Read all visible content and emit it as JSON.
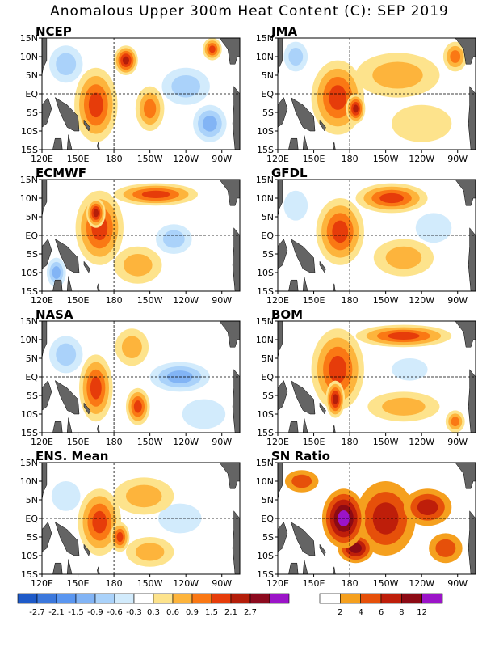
{
  "title": "Anomalous Upper 300m Heat Content (C): SEP 2019",
  "lat_ticks": [
    "15N",
    "10N",
    "5N",
    "EQ",
    "5S",
    "10S",
    "15S"
  ],
  "lon_ticks": [
    "120E",
    "150E",
    "180",
    "150W",
    "120W",
    "90W"
  ],
  "panels": [
    {
      "name": "NCEP"
    },
    {
      "name": "JMA"
    },
    {
      "name": "ECMWF"
    },
    {
      "name": "GFDL"
    },
    {
      "name": "NASA"
    },
    {
      "name": "BOM"
    },
    {
      "name": "ENS. Mean"
    },
    {
      "name": "SN Ratio"
    }
  ],
  "colorbars": {
    "anomaly": {
      "labels": [
        "-2.7",
        "-2.1",
        "-1.5",
        "-0.9",
        "-0.6",
        "-0.3",
        "0.3",
        "0.6",
        "0.9",
        "1.5",
        "2.1",
        "2.7"
      ],
      "colors": [
        "#1e5ac8",
        "#3c78dc",
        "#5a96f0",
        "#82b4f5",
        "#aad2fa",
        "#d2ebfc",
        "#ffffff",
        "#fde38c",
        "#fdb43c",
        "#fa7814",
        "#e63c0a",
        "#b41e0a",
        "#8c0a1e",
        "#9b14c8"
      ]
    },
    "sn_ratio": {
      "labels": [
        "2",
        "4",
        "6",
        "8",
        "12"
      ],
      "colors": [
        "#ffffff",
        "#f5a01e",
        "#e6500a",
        "#be1e0a",
        "#8c0a14",
        "#9b14c8"
      ]
    }
  },
  "chart_data": {
    "type": "heatmap",
    "variable": "Anomalous Upper 300m Heat Content (C)",
    "period": "SEP 2019",
    "lat_range": [
      "15S",
      "15N"
    ],
    "lon_range": [
      "120E",
      "75W"
    ],
    "panels": [
      {
        "name": "NCEP",
        "features": [
          {
            "lon": 165,
            "lat": -3,
            "value": 1.5,
            "r_lon": 18,
            "r_lat": 10
          },
          {
            "lon": 190,
            "lat": 9,
            "value": 2.1,
            "r_lon": 10,
            "r_lat": 4
          },
          {
            "lon": 210,
            "lat": -4,
            "value": 0.9,
            "r_lon": 12,
            "r_lat": 6
          },
          {
            "lon": 240,
            "lat": 2,
            "value": -0.6,
            "r_lon": 20,
            "r_lat": 5
          },
          {
            "lon": 260,
            "lat": -8,
            "value": -0.9,
            "r_lon": 14,
            "r_lat": 5
          },
          {
            "lon": 140,
            "lat": 8,
            "value": -0.6,
            "r_lon": 14,
            "r_lat": 5
          },
          {
            "lon": 262,
            "lat": 12,
            "value": 1.5,
            "r_lon": 8,
            "r_lat": 3
          }
        ]
      },
      {
        "name": "JMA",
        "features": [
          {
            "lon": 170,
            "lat": -1,
            "value": 1.5,
            "r_lon": 22,
            "r_lat": 10
          },
          {
            "lon": 185,
            "lat": -4,
            "value": 2.1,
            "r_lon": 8,
            "r_lat": 4
          },
          {
            "lon": 220,
            "lat": 5,
            "value": 0.6,
            "r_lon": 35,
            "r_lat": 6
          },
          {
            "lon": 240,
            "lat": -8,
            "value": 0.3,
            "r_lon": 25,
            "r_lat": 5
          },
          {
            "lon": 135,
            "lat": 10,
            "value": -0.6,
            "r_lon": 10,
            "r_lat": 4
          },
          {
            "lon": 268,
            "lat": 10,
            "value": 0.9,
            "r_lon": 10,
            "r_lat": 4
          }
        ]
      },
      {
        "name": "ECMWF",
        "features": [
          {
            "lon": 168,
            "lat": 2,
            "value": 1.5,
            "r_lon": 20,
            "r_lat": 10
          },
          {
            "lon": 165,
            "lat": 6,
            "value": 2.1,
            "r_lon": 8,
            "r_lat": 4
          },
          {
            "lon": 215,
            "lat": 11,
            "value": 1.5,
            "r_lon": 35,
            "r_lat": 3
          },
          {
            "lon": 230,
            "lat": -1,
            "value": -0.6,
            "r_lon": 15,
            "r_lat": 4
          },
          {
            "lon": 200,
            "lat": -8,
            "value": 0.6,
            "r_lon": 20,
            "r_lat": 5
          },
          {
            "lon": 132,
            "lat": -10,
            "value": -0.9,
            "r_lon": 8,
            "r_lat": 4
          }
        ]
      },
      {
        "name": "GFDL",
        "features": [
          {
            "lon": 172,
            "lat": 1,
            "value": 1.5,
            "r_lon": 20,
            "r_lat": 9
          },
          {
            "lon": 215,
            "lat": 10,
            "value": 1.5,
            "r_lon": 30,
            "r_lat": 4
          },
          {
            "lon": 225,
            "lat": -6,
            "value": 0.6,
            "r_lon": 25,
            "r_lat": 5
          },
          {
            "lon": 250,
            "lat": 2,
            "value": -0.3,
            "r_lon": 15,
            "r_lat": 4
          },
          {
            "lon": 135,
            "lat": 8,
            "value": -0.3,
            "r_lon": 10,
            "r_lat": 4
          }
        ]
      },
      {
        "name": "NASA",
        "features": [
          {
            "lon": 165,
            "lat": -3,
            "value": 1.5,
            "r_lon": 14,
            "r_lat": 9
          },
          {
            "lon": 200,
            "lat": -8,
            "value": 1.5,
            "r_lon": 10,
            "r_lat": 5
          },
          {
            "lon": 195,
            "lat": 8,
            "value": 0.6,
            "r_lon": 14,
            "r_lat": 5
          },
          {
            "lon": 235,
            "lat": 0,
            "value": -0.9,
            "r_lon": 25,
            "r_lat": 4
          },
          {
            "lon": 140,
            "lat": 6,
            "value": -0.6,
            "r_lon": 14,
            "r_lat": 5
          },
          {
            "lon": 255,
            "lat": -10,
            "value": -0.3,
            "r_lon": 18,
            "r_lat": 4
          }
        ]
      },
      {
        "name": "BOM",
        "features": [
          {
            "lon": 170,
            "lat": 2,
            "value": 1.5,
            "r_lon": 22,
            "r_lat": 11
          },
          {
            "lon": 168,
            "lat": -6,
            "value": 2.1,
            "r_lon": 8,
            "r_lat": 5
          },
          {
            "lon": 225,
            "lat": 11,
            "value": 1.5,
            "r_lon": 40,
            "r_lat": 3
          },
          {
            "lon": 225,
            "lat": -8,
            "value": 0.6,
            "r_lon": 30,
            "r_lat": 4
          },
          {
            "lon": 230,
            "lat": 2,
            "value": -0.3,
            "r_lon": 15,
            "r_lat": 3
          },
          {
            "lon": 268,
            "lat": -12,
            "value": 0.9,
            "r_lon": 8,
            "r_lat": 3
          }
        ]
      },
      {
        "name": "ENS. Mean",
        "features": [
          {
            "lon": 168,
            "lat": -1,
            "value": 1.5,
            "r_lon": 18,
            "r_lat": 9
          },
          {
            "lon": 185,
            "lat": -5,
            "value": 1.5,
            "r_lon": 8,
            "r_lat": 4
          },
          {
            "lon": 205,
            "lat": 6,
            "value": 0.6,
            "r_lon": 25,
            "r_lat": 5
          },
          {
            "lon": 210,
            "lat": -9,
            "value": 0.6,
            "r_lon": 20,
            "r_lat": 4
          },
          {
            "lon": 235,
            "lat": 0,
            "value": -0.3,
            "r_lon": 18,
            "r_lat": 4
          },
          {
            "lon": 140,
            "lat": 6,
            "value": -0.3,
            "r_lon": 12,
            "r_lat": 4
          }
        ]
      },
      {
        "name": "SN Ratio",
        "features": [
          {
            "lon": 175,
            "lat": 0,
            "value": 12,
            "r_lon": 18,
            "r_lat": 8
          },
          {
            "lon": 210,
            "lat": 0,
            "value": 6,
            "r_lon": 25,
            "r_lat": 10
          },
          {
            "lon": 245,
            "lat": 3,
            "value": 6,
            "r_lon": 20,
            "r_lat": 5
          },
          {
            "lon": 185,
            "lat": -8,
            "value": 8,
            "r_lon": 15,
            "r_lat": 4
          },
          {
            "lon": 260,
            "lat": -8,
            "value": 4,
            "r_lon": 14,
            "r_lat": 4
          },
          {
            "lon": 140,
            "lat": 10,
            "value": 4,
            "r_lon": 14,
            "r_lat": 3
          }
        ]
      }
    ]
  }
}
